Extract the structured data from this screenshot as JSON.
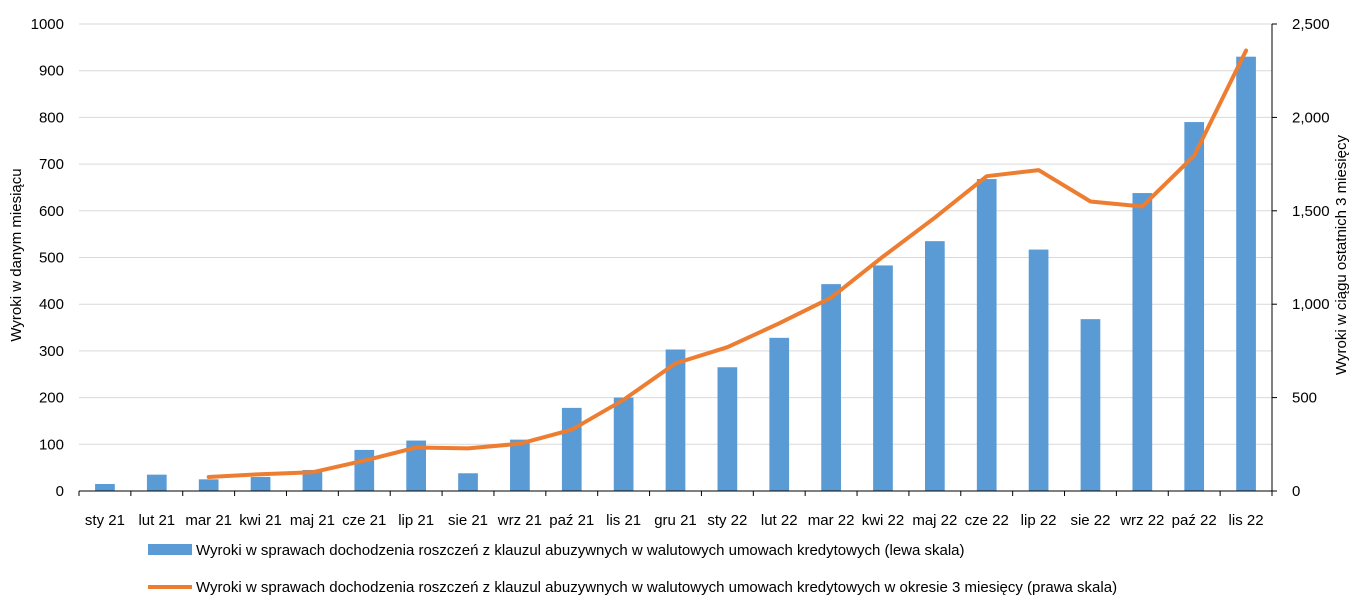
{
  "chart_data": {
    "type": "bar",
    "categories": [
      "sty 21",
      "lut 21",
      "mar 21",
      "kwi 21",
      "maj 21",
      "cze 21",
      "lip 21",
      "sie 21",
      "wrz 21",
      "paź 21",
      "lis 21",
      "gru 21",
      "sty 22",
      "lut 22",
      "mar 22",
      "kwi 22",
      "maj 22",
      "cze 22",
      "lip 22",
      "sie 22",
      "wrz 22",
      "paź 22",
      "lis 22"
    ],
    "series": [
      {
        "name": "Wyroki w sprawach dochodzenia roszczeń z klauzul abuzywnych w walutowych umowach kredytowych (lewa skala)",
        "type": "bar",
        "axis": "left",
        "color": "#5b9bd5",
        "values": [
          15,
          35,
          25,
          30,
          45,
          88,
          108,
          38,
          110,
          178,
          200,
          303,
          265,
          328,
          443,
          483,
          535,
          668,
          517,
          368,
          638,
          790,
          930
        ]
      },
      {
        "name": "Wyroki w sprawach dochodzenia roszczeń z klauzul abuzywnych w walutowych umowach kredytowych w okresie 3 miesięcy (prawa skala)",
        "type": "line",
        "axis": "right",
        "color": "#ed7d31",
        "values": [
          null,
          null,
          75,
          90,
          100,
          163,
          233,
          228,
          253,
          328,
          488,
          683,
          770,
          898,
          1035,
          1255,
          1463,
          1685,
          1718,
          1550,
          1523,
          1795,
          2358
        ]
      }
    ],
    "y_left": {
      "label": "Wyroki w danym miesiącu",
      "min": 0,
      "max": 1000,
      "step": 100,
      "ticks": [
        "0",
        "100",
        "200",
        "300",
        "400",
        "500",
        "600",
        "700",
        "800",
        "900",
        "1000"
      ]
    },
    "y_right": {
      "label": "Wyroki w ciągu ostatnich 3 miesięcy",
      "min": 0,
      "max": 2500,
      "step": 500,
      "ticks": [
        "0",
        "500",
        "1,000",
        "1,500",
        "2,000",
        "2,500"
      ]
    },
    "grid": true,
    "legend_position": "bottom"
  }
}
